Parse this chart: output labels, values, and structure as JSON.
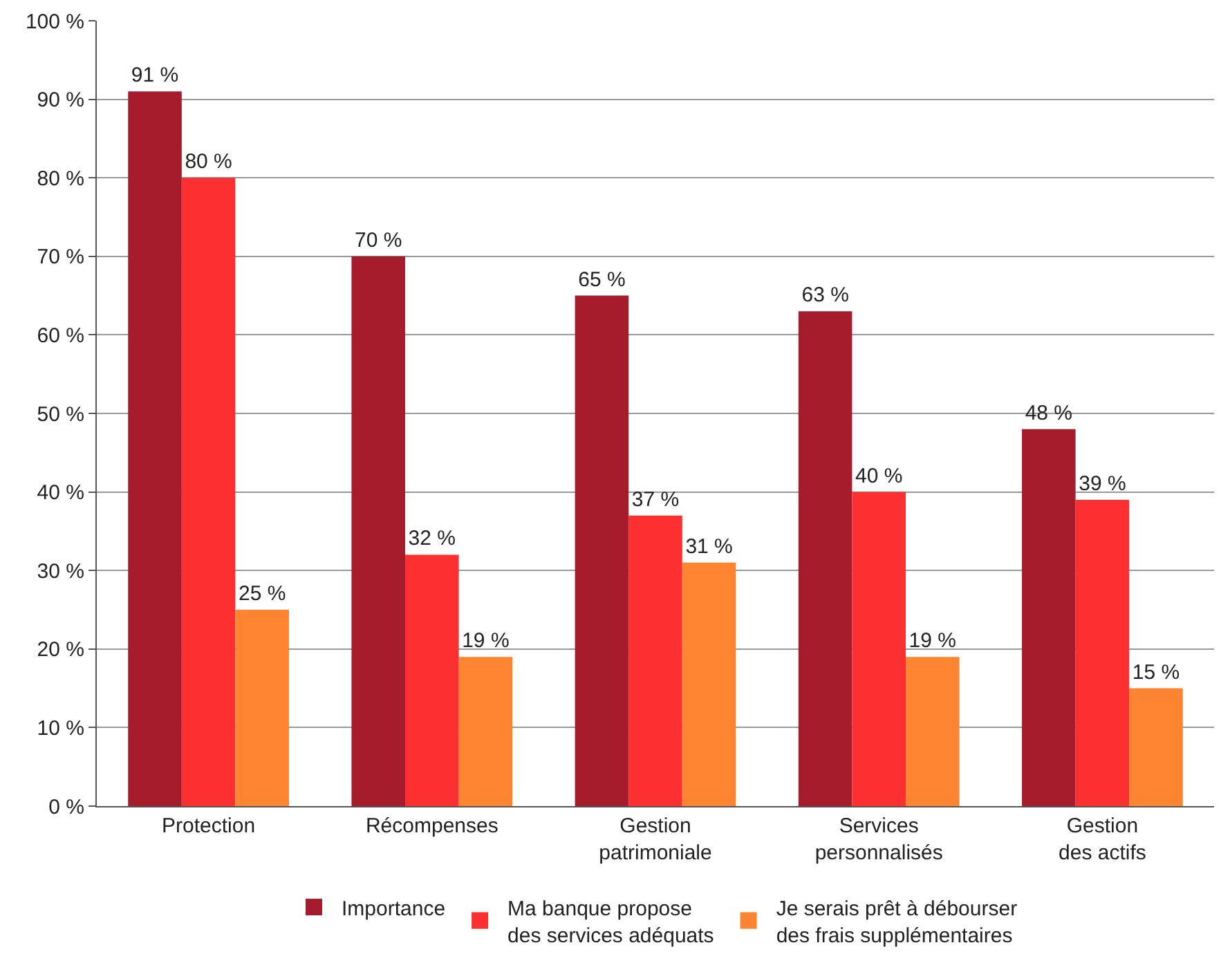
{
  "chart_data": {
    "type": "bar",
    "categories": [
      "Protection",
      "Récompenses",
      "Gestion\npatrimoniale",
      "Services\npersonnalisés",
      "Gestion\ndes actifs"
    ],
    "series": [
      {
        "name": "Importance",
        "color": "#a51d2d",
        "values": [
          91,
          70,
          65,
          63,
          48
        ],
        "value_labels": [
          "91 %",
          "70 %",
          "65 %",
          "63 %",
          "48 %"
        ]
      },
      {
        "name": "Ma banque propose\ndes services adéquats",
        "color": "#fc3030",
        "values": [
          80,
          32,
          37,
          40,
          39
        ],
        "value_labels": [
          "80 %",
          "32 %",
          "37 %",
          "40 %",
          "39 %"
        ]
      },
      {
        "name": "Je serais prêt à débourser\ndes frais supplémentaires",
        "color": "#fd8431",
        "values": [
          25,
          19,
          31,
          19,
          15
        ],
        "value_labels": [
          "25 %",
          "19 %",
          "31 %",
          "19 %",
          "15 %"
        ]
      }
    ],
    "ylim": [
      0,
      100
    ],
    "yticks": [
      {
        "value": 0,
        "label": "0 %"
      },
      {
        "value": 10,
        "label": "10 %"
      },
      {
        "value": 20,
        "label": "20 %"
      },
      {
        "value": 30,
        "label": "30 %"
      },
      {
        "value": 40,
        "label": "40 %"
      },
      {
        "value": 50,
        "label": "50 %"
      },
      {
        "value": 60,
        "label": "60 %"
      },
      {
        "value": 70,
        "label": "70 %"
      },
      {
        "value": 80,
        "label": "80 %"
      },
      {
        "value": 90,
        "label": "90 %"
      },
      {
        "value": 100,
        "label": "100 %"
      }
    ],
    "grid": "y",
    "legend": "bottom"
  }
}
